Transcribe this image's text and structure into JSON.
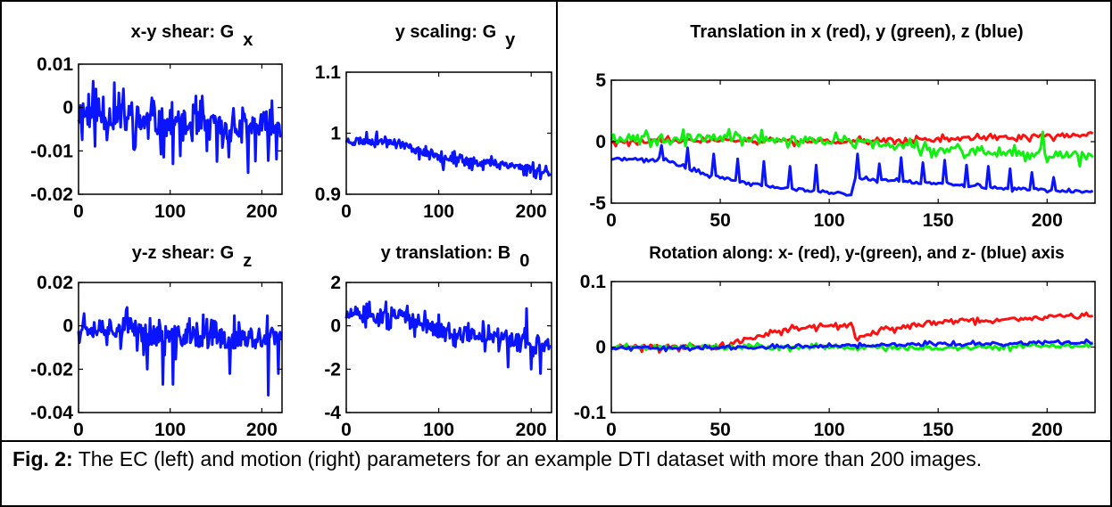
{
  "figure": {
    "caption_label": "Fig. 2:",
    "caption_text": "The EC (left) and motion (right) parameters for an example DTI dataset with more than 200 images."
  },
  "colors": {
    "blue": "#0a14ff",
    "red": "#ff1010",
    "green": "#10f010",
    "frame": "#000000"
  },
  "chart_data": [
    {
      "id": "gx",
      "type": "line",
      "title_main": "x-y shear: G",
      "title_sub": "x",
      "xlim": [
        0,
        222
      ],
      "ylim": [
        -0.02,
        0.01
      ],
      "xticks": [
        0,
        100,
        200
      ],
      "xtick_labels": [
        "0",
        "100",
        "200"
      ],
      "yticks": [
        0.01,
        0,
        -0.01,
        -0.02
      ],
      "ytick_labels": [
        "0.01",
        "0",
        "-0.01",
        "-0.02"
      ],
      "series": [
        {
          "color": "blue",
          "gen": {
            "n": 222,
            "base": [
              [
                0,
                -0.001
              ],
              [
                40,
                -0.002
              ],
              [
                100,
                -0.004
              ],
              [
                160,
                -0.005
              ],
              [
                222,
                -0.004
              ]
            ],
            "amp": 0.005,
            "spikes": [
              [
                103,
                -0.013
              ],
              [
                185,
                -0.015
              ],
              [
                62,
                -0.009
              ],
              [
                140,
                -0.01
              ]
            ],
            "seed": 11
          }
        }
      ]
    },
    {
      "id": "gy",
      "type": "line",
      "title_main": "y scaling: G",
      "title_sub": "y",
      "xlim": [
        0,
        222
      ],
      "ylim": [
        0.9,
        1.1
      ],
      "xticks": [
        0,
        100,
        200
      ],
      "xtick_labels": [
        "0",
        "100",
        "200"
      ],
      "yticks": [
        1.1,
        1,
        0.9
      ],
      "ytick_labels": [
        "1.1",
        "1",
        "0.9"
      ],
      "series": [
        {
          "color": "blue",
          "gen": {
            "n": 222,
            "base": [
              [
                0,
                0.988
              ],
              [
                50,
                0.988
              ],
              [
                80,
                0.97
              ],
              [
                100,
                0.965
              ],
              [
                120,
                0.955
              ],
              [
                170,
                0.95
              ],
              [
                222,
                0.935
              ]
            ],
            "amp": 0.009,
            "spikes": [
              [
                105,
                0.94
              ],
              [
                210,
                0.925
              ]
            ],
            "seed": 23
          }
        }
      ]
    },
    {
      "id": "gz",
      "type": "line",
      "title_main": "y-z shear: G",
      "title_sub": "z",
      "xlim": [
        0,
        222
      ],
      "ylim": [
        -0.04,
        0.02
      ],
      "xticks": [
        0,
        100,
        200
      ],
      "xtick_labels": [
        "0",
        "100",
        "200"
      ],
      "yticks": [
        0.02,
        0,
        -0.02,
        -0.04
      ],
      "ytick_labels": [
        "0.02",
        "0",
        "-0.02",
        "-0.04"
      ],
      "series": [
        {
          "color": "blue",
          "gen": {
            "n": 222,
            "base": [
              [
                0,
                0.0
              ],
              [
                60,
                -0.001
              ],
              [
                75,
                -0.004
              ],
              [
                150,
                -0.006
              ],
              [
                222,
                -0.006
              ]
            ],
            "amp": 0.007,
            "spikes": [
              [
                92,
                -0.027
              ],
              [
                103,
                -0.027
              ],
              [
                207,
                -0.032
              ],
              [
                75,
                -0.02
              ],
              [
                165,
                -0.022
              ],
              [
                218,
                -0.022
              ]
            ],
            "seed": 37
          }
        }
      ]
    },
    {
      "id": "b0",
      "type": "line",
      "title_main": "y translation: B",
      "title_sub": "0",
      "xlim": [
        0,
        222
      ],
      "ylim": [
        -4,
        2
      ],
      "xticks": [
        0,
        100,
        200
      ],
      "xtick_labels": [
        "0",
        "100",
        "200"
      ],
      "yticks": [
        2,
        0,
        -2,
        -4
      ],
      "ytick_labels": [
        "2",
        "0",
        "-2",
        "-4"
      ],
      "series": [
        {
          "color": "blue",
          "gen": {
            "n": 222,
            "base": [
              [
                0,
                0.5
              ],
              [
                60,
                0.4
              ],
              [
                100,
                -0.2
              ],
              [
                150,
                -0.5
              ],
              [
                222,
                -0.9
              ]
            ],
            "amp": 0.45,
            "spikes": [
              [
                200,
                -2.0
              ],
              [
                175,
                -1.9
              ],
              [
                210,
                -2.2
              ],
              [
                195,
                0.8
              ]
            ],
            "seed": 51
          }
        }
      ]
    },
    {
      "id": "trans",
      "type": "line",
      "title_main": "Translation in x (red), y (green), z (blue)",
      "title_sub": "",
      "xlim": [
        0,
        222
      ],
      "ylim": [
        -5,
        5
      ],
      "xticks": [
        0,
        50,
        100,
        150,
        200
      ],
      "xtick_labels": [
        "0",
        "50",
        "100",
        "150",
        "200"
      ],
      "yticks": [
        5,
        0,
        -5
      ],
      "ytick_labels": [
        "5",
        "0",
        "-5"
      ],
      "series": [
        {
          "color": "red",
          "gen": {
            "n": 222,
            "base": [
              [
                0,
                0.0
              ],
              [
                50,
                0.1
              ],
              [
                100,
                0.0
              ],
              [
                160,
                0.2
              ],
              [
                222,
                0.6
              ]
            ],
            "amp": 0.25,
            "spikes": [],
            "seed": 61
          }
        },
        {
          "color": "green",
          "gen": {
            "n": 222,
            "base": [
              [
                0,
                0.3
              ],
              [
                60,
                0.3
              ],
              [
                110,
                0.0
              ],
              [
                160,
                -0.8
              ],
              [
                222,
                -1.1
              ]
            ],
            "amp": 0.45,
            "spikes": [
              [
                198,
                0.8
              ],
              [
                215,
                -2.0
              ]
            ],
            "seed": 67
          }
        },
        {
          "color": "blue",
          "gen": {
            "n": 222,
            "base": [
              [
                0,
                -1.4
              ],
              [
                25,
                -1.5
              ],
              [
                40,
                -2.5
              ],
              [
                60,
                -3.3
              ],
              [
                80,
                -3.8
              ],
              [
                110,
                -4.3
              ],
              [
                112,
                -3.0
              ],
              [
                140,
                -3.3
              ],
              [
                180,
                -3.8
              ],
              [
                222,
                -4.1
              ]
            ],
            "amp": 0.15,
            "spikes": [
              [
                23,
                -0.3
              ],
              [
                35,
                -0.5
              ],
              [
                47,
                -1.0
              ],
              [
                58,
                -1.4
              ],
              [
                70,
                -1.6
              ],
              [
                82,
                -2.0
              ],
              [
                94,
                -1.9
              ],
              [
                113,
                -1.0
              ],
              [
                123,
                -1.8
              ],
              [
                133,
                -1.3
              ],
              [
                143,
                -1.7
              ],
              [
                153,
                -1.5
              ],
              [
                163,
                -1.9
              ],
              [
                173,
                -2.0
              ],
              [
                183,
                -2.2
              ],
              [
                193,
                -2.5
              ],
              [
                203,
                -2.9
              ]
            ],
            "seed": 71
          }
        }
      ]
    },
    {
      "id": "rot",
      "type": "line",
      "title_main": "Rotation along: x- (red), y-(green), and z- (blue) axis",
      "title_sub": "",
      "xlim": [
        0,
        222
      ],
      "ylim": [
        -0.1,
        0.1
      ],
      "xticks": [
        0,
        50,
        100,
        150,
        200
      ],
      "xtick_labels": [
        "0",
        "50",
        "100",
        "150",
        "200"
      ],
      "yticks": [
        0.1,
        0,
        -0.1
      ],
      "ytick_labels": [
        "0.1",
        "0",
        "-0.1"
      ],
      "series": [
        {
          "color": "red",
          "gen": {
            "n": 222,
            "base": [
              [
                0,
                0.0
              ],
              [
                50,
                0.0
              ],
              [
                70,
                0.02
              ],
              [
                90,
                0.03
              ],
              [
                110,
                0.035
              ],
              [
                113,
                0.015
              ],
              [
                130,
                0.03
              ],
              [
                160,
                0.04
              ],
              [
                200,
                0.045
              ],
              [
                222,
                0.05
              ]
            ],
            "amp": 0.005,
            "spikes": [],
            "seed": 81
          }
        },
        {
          "color": "green",
          "gen": {
            "n": 222,
            "base": [
              [
                0,
                0.0
              ],
              [
                100,
                0.0
              ],
              [
                160,
                -0.002
              ],
              [
                222,
                0.003
              ]
            ],
            "amp": 0.004,
            "spikes": [],
            "seed": 87
          }
        },
        {
          "color": "blue",
          "gen": {
            "n": 222,
            "base": [
              [
                0,
                -0.002
              ],
              [
                80,
                0.0
              ],
              [
                140,
                0.004
              ],
              [
                222,
                0.007
              ]
            ],
            "amp": 0.003,
            "spikes": [],
            "seed": 93
          }
        }
      ]
    }
  ]
}
